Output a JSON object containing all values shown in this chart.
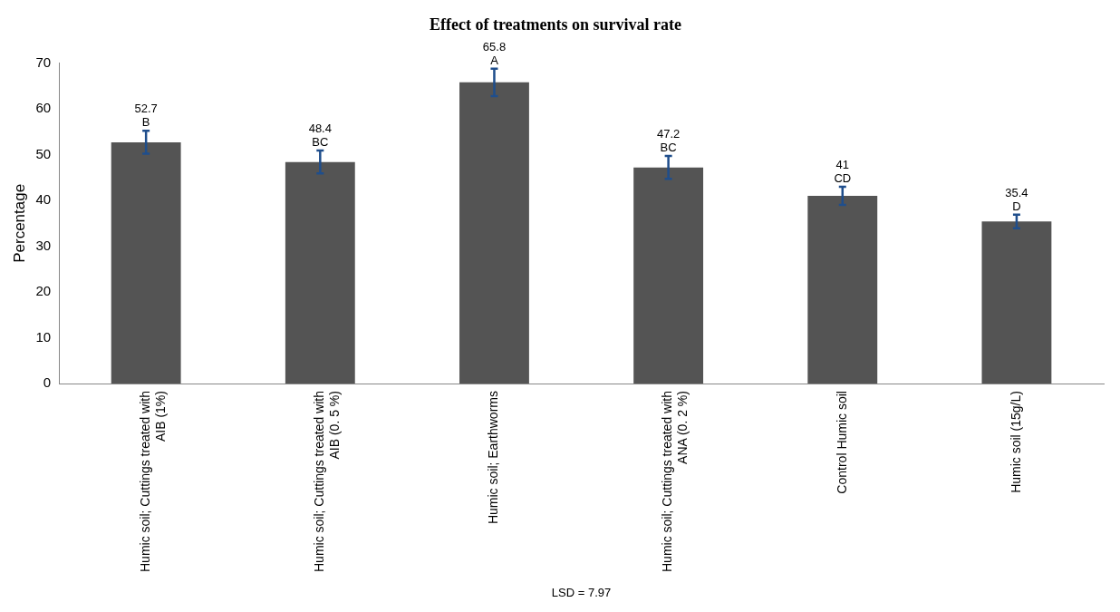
{
  "chart_data": {
    "type": "bar",
    "title": "Effect of treatments on survival rate",
    "ylabel": "Percentage",
    "categories": [
      "Humic soil; Cuttings treated with AIB (1%)",
      "Humic soil; Cuttings treated with AIB (0. 5 %)",
      "Humic soil; Earthworms",
      "Humic soil; Cuttings treated with ANA (0. 2 %)",
      "Control Humic soil",
      "Humic soil (15g/L)"
    ],
    "values": [
      52.7,
      48.4,
      65.8,
      47.2,
      41,
      35.4
    ],
    "errors": [
      2.5,
      2.5,
      3,
      2.5,
      2,
      1.5
    ],
    "color": "#545454",
    "ylim": [
      0,
      70
    ],
    "yticks": [
      0,
      10,
      20,
      30,
      40,
      50,
      60,
      70
    ],
    "grid": false,
    "legend": false,
    "data_labels": true,
    "annotations": [
      {
        "text": "B",
        "x": "Humic soil; Cuttings treated with AIB (1%)",
        "y": 52.7
      },
      {
        "text": "BC",
        "x": "Humic soil; Cuttings treated with AIB (0. 5 %)",
        "y": 48.4
      },
      {
        "text": "A",
        "x": "Humic soil; Earthworms",
        "y": 65.8
      },
      {
        "text": "BC",
        "x": "Humic soil; Cuttings treated with ANA (0. 2 %)",
        "y": 47.2
      },
      {
        "text": "CD",
        "x": "Control Humic soil",
        "y": 41
      },
      {
        "text": "D",
        "x": "Humic soil (15g/L)",
        "y": 35.4
      },
      "LSD = 7.97"
    ]
  }
}
